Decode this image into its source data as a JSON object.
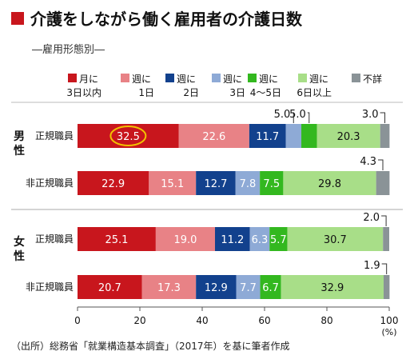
{
  "chart_data": {
    "type": "bar",
    "orientation": "horizontal",
    "stacked": true,
    "title": "介護をしながら働く雇用者の介護日数",
    "subtitle": "―雇用形態別―",
    "legend": [
      {
        "name": "月に 3日以内",
        "lines": [
          "月に",
          "3日以内"
        ],
        "color": "#c8161d"
      },
      {
        "name": "週に 1日",
        "lines": [
          "週に",
          "1日"
        ],
        "color": "#e88286"
      },
      {
        "name": "週に 2日",
        "lines": [
          "週に",
          "2日"
        ],
        "color": "#12418d"
      },
      {
        "name": "週に 3日",
        "lines": [
          "週に",
          "3日"
        ],
        "color": "#8eaad6"
      },
      {
        "name": "週に 4〜5日",
        "lines": [
          "週に",
          "4〜5日"
        ],
        "color": "#33b81f"
      },
      {
        "name": "週に 6日以上",
        "lines": [
          "週に",
          "6日以上"
        ],
        "color": "#a8de88"
      },
      {
        "name": "不詳",
        "lines": [
          "不詳"
        ],
        "color": "#8a9397"
      }
    ],
    "groups": [
      {
        "label": "男性",
        "rows": [
          {
            "label": "正規職員",
            "values": [
              32.5,
              22.6,
              11.7,
              5.0,
              5.0,
              20.3,
              3.0
            ],
            "highlight": 0
          },
          {
            "label": "非正規職員",
            "values": [
              22.9,
              15.1,
              12.7,
              7.8,
              7.5,
              29.8,
              4.3
            ]
          }
        ]
      },
      {
        "label": "女性",
        "rows": [
          {
            "label": "正規職員",
            "values": [
              25.1,
              19.0,
              11.2,
              6.3,
              5.7,
              30.7,
              2.0
            ]
          },
          {
            "label": "非正規職員",
            "values": [
              20.7,
              17.3,
              12.9,
              7.7,
              6.7,
              32.9,
              1.9
            ]
          }
        ]
      }
    ],
    "callouts": [
      {
        "row": 0,
        "text": "5.0",
        "series": 3
      },
      {
        "row": 0,
        "text": "5.0",
        "series": 4
      },
      {
        "row": 0,
        "text": "3.0",
        "series": 6
      },
      {
        "row": 1,
        "text": "4.3",
        "series": 6
      },
      {
        "row": 2,
        "text": "2.0",
        "series": 6
      },
      {
        "row": 3,
        "text": "1.9",
        "series": 6
      }
    ],
    "xlim": [
      0,
      100
    ],
    "xticks": [
      "0",
      "20",
      "40",
      "60",
      "80",
      "100"
    ],
    "xunit": "(%)",
    "source": "（出所）総務省「就業構造基本調査」（2017年）を基に筆者作成"
  }
}
